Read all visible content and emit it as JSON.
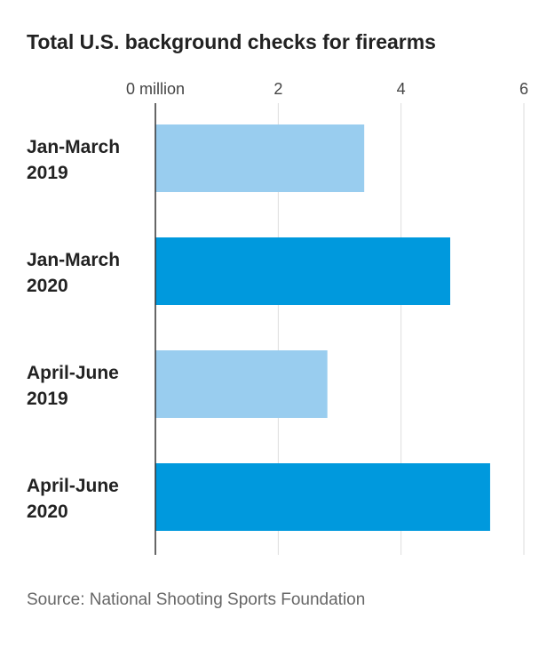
{
  "chart_data": {
    "type": "bar",
    "orientation": "horizontal",
    "title": "Total U.S. background checks for firearms",
    "x_unit_label": "million",
    "xlim": [
      0,
      6
    ],
    "x_ticks": [
      0,
      2,
      4,
      6
    ],
    "x_tick_labels": [
      "0 million",
      "2",
      "4",
      "6"
    ],
    "grid": true,
    "categories": [
      [
        "Jan-March",
        "2019"
      ],
      [
        "Jan-March",
        "2020"
      ],
      [
        "April-June",
        "2019"
      ],
      [
        "April-June",
        "2020"
      ]
    ],
    "values": [
      3.4,
      4.8,
      2.8,
      5.45
    ],
    "bar_colors": [
      "#99cdef",
      "#0099dd",
      "#99cdef",
      "#0099dd"
    ],
    "source": "Source: National Shooting Sports Foundation"
  }
}
